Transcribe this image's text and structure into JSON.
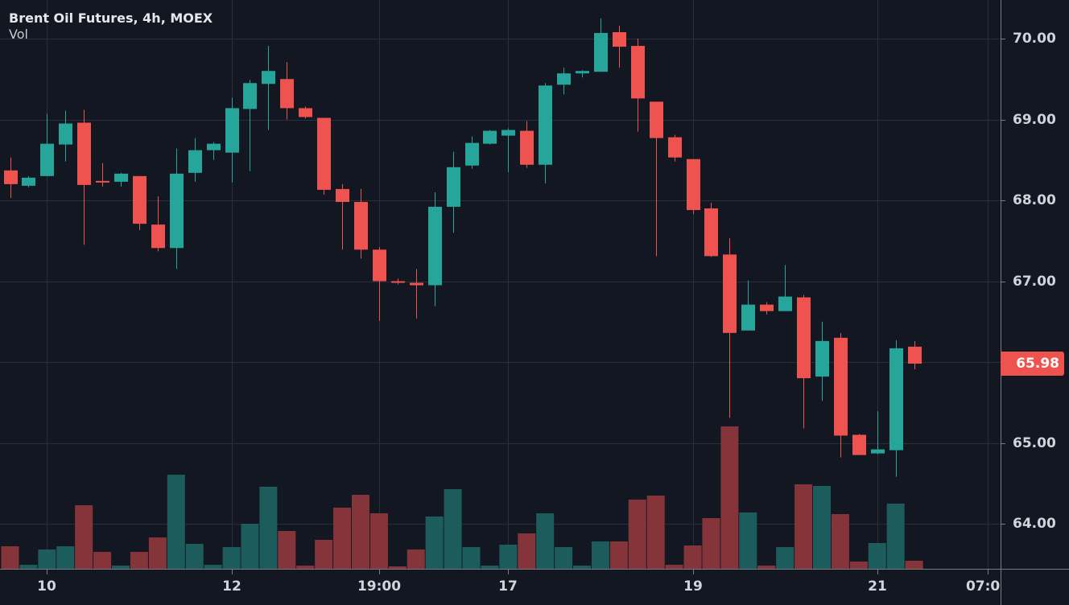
{
  "header": {
    "title": "Brent Oil Futures, 4h, MOEX",
    "indicator": "Vol"
  },
  "last_price": {
    "value": "65.98",
    "color": "#ef5350"
  },
  "colors": {
    "background": "#131722",
    "grid": "#2a2e39",
    "axis_line": "#787b86",
    "up": "#26a69a",
    "down": "#ef5350",
    "vol_up": "#1c5c5c",
    "vol_down": "#853539"
  },
  "price_axis": {
    "ticks": [
      "70.00",
      "69.00",
      "68.00",
      "67.00",
      "65.00",
      "64.00"
    ]
  },
  "time_axis": {
    "ticks": [
      "10",
      "12",
      "19:00",
      "17",
      "19",
      "21",
      "07:00"
    ]
  },
  "chart_data": {
    "type": "candlestick",
    "title": "Brent Oil Futures, 4h, MOEX",
    "xlabel": "",
    "ylabel": "Price",
    "ylim": [
      63.45,
      70.48
    ],
    "grid": true,
    "legend": "top-left",
    "y_ticks": [
      64,
      65,
      66,
      67,
      68,
      69,
      70
    ],
    "x_tick_labels": [
      {
        "label": "10",
        "index": 2
      },
      {
        "label": "12",
        "index": 12
      },
      {
        "label": "19:00",
        "index": 20
      },
      {
        "label": "17",
        "index": 27
      },
      {
        "label": "19",
        "index": 37
      },
      {
        "label": "21",
        "index": 47
      },
      {
        "label": "07:00",
        "index": 53
      }
    ],
    "last_price": 65.98,
    "candles": [
      {
        "o": 68.37,
        "h": 68.53,
        "l": 68.03,
        "c": 68.2,
        "v": 28
      },
      {
        "o": 68.18,
        "h": 68.3,
        "l": 68.16,
        "c": 68.28,
        "v": 5
      },
      {
        "o": 68.3,
        "h": 69.07,
        "l": 68.3,
        "c": 68.7,
        "v": 24
      },
      {
        "o": 68.69,
        "h": 69.11,
        "l": 68.48,
        "c": 68.95,
        "v": 28
      },
      {
        "o": 68.96,
        "h": 69.12,
        "l": 67.45,
        "c": 68.19,
        "v": 79
      },
      {
        "o": 68.24,
        "h": 68.46,
        "l": 68.17,
        "c": 68.22,
        "v": 21
      },
      {
        "o": 68.23,
        "h": 68.34,
        "l": 68.17,
        "c": 68.33,
        "v": 4
      },
      {
        "o": 68.3,
        "h": 68.3,
        "l": 67.63,
        "c": 67.71,
        "v": 21
      },
      {
        "o": 67.7,
        "h": 68.05,
        "l": 67.37,
        "c": 67.41,
        "v": 39
      },
      {
        "o": 67.41,
        "h": 68.64,
        "l": 67.15,
        "c": 68.33,
        "v": 117
      },
      {
        "o": 68.34,
        "h": 68.77,
        "l": 68.23,
        "c": 68.62,
        "v": 31
      },
      {
        "o": 68.62,
        "h": 68.72,
        "l": 68.5,
        "c": 68.7,
        "v": 5
      },
      {
        "o": 68.59,
        "h": 69.27,
        "l": 68.22,
        "c": 69.14,
        "v": 27
      },
      {
        "o": 69.13,
        "h": 69.49,
        "l": 68.36,
        "c": 69.45,
        "v": 56
      },
      {
        "o": 69.44,
        "h": 69.91,
        "l": 68.87,
        "c": 69.6,
        "v": 102
      },
      {
        "o": 69.5,
        "h": 69.71,
        "l": 69.0,
        "c": 69.14,
        "v": 47
      },
      {
        "o": 69.14,
        "h": 69.16,
        "l": 69.01,
        "c": 69.03,
        "v": 4
      },
      {
        "o": 69.02,
        "h": 69.02,
        "l": 68.07,
        "c": 68.13,
        "v": 36
      },
      {
        "o": 68.14,
        "h": 68.2,
        "l": 67.39,
        "c": 67.98,
        "v": 76
      },
      {
        "o": 67.98,
        "h": 68.14,
        "l": 67.28,
        "c": 67.39,
        "v": 92
      },
      {
        "o": 67.39,
        "h": 67.42,
        "l": 66.51,
        "c": 67.0,
        "v": 69
      },
      {
        "o": 67.0,
        "h": 67.03,
        "l": 66.96,
        "c": 66.98,
        "v": 3
      },
      {
        "o": 66.98,
        "h": 67.15,
        "l": 66.54,
        "c": 66.95,
        "v": 24
      },
      {
        "o": 66.95,
        "h": 68.1,
        "l": 66.69,
        "c": 67.92,
        "v": 65
      },
      {
        "o": 67.92,
        "h": 68.6,
        "l": 67.6,
        "c": 68.41,
        "v": 99
      },
      {
        "o": 68.43,
        "h": 68.79,
        "l": 68.39,
        "c": 68.71,
        "v": 27
      },
      {
        "o": 68.7,
        "h": 68.87,
        "l": 68.69,
        "c": 68.86,
        "v": 4
      },
      {
        "o": 68.8,
        "h": 68.89,
        "l": 68.35,
        "c": 68.87,
        "v": 30
      },
      {
        "o": 68.86,
        "h": 68.98,
        "l": 68.4,
        "c": 68.44,
        "v": 44
      },
      {
        "o": 68.44,
        "h": 69.45,
        "l": 68.21,
        "c": 69.42,
        "v": 69
      },
      {
        "o": 69.43,
        "h": 69.64,
        "l": 69.31,
        "c": 69.57,
        "v": 27
      },
      {
        "o": 69.57,
        "h": 69.61,
        "l": 69.52,
        "c": 69.6,
        "v": 4
      },
      {
        "o": 69.59,
        "h": 70.25,
        "l": 69.59,
        "c": 70.07,
        "v": 34
      },
      {
        "o": 70.08,
        "h": 70.16,
        "l": 69.64,
        "c": 69.9,
        "v": 34
      },
      {
        "o": 69.91,
        "h": 70.0,
        "l": 68.85,
        "c": 69.26,
        "v": 86
      },
      {
        "o": 69.22,
        "h": 69.22,
        "l": 67.31,
        "c": 68.77,
        "v": 91
      },
      {
        "o": 68.78,
        "h": 68.81,
        "l": 68.48,
        "c": 68.53,
        "v": 5
      },
      {
        "o": 68.51,
        "h": 68.51,
        "l": 67.83,
        "c": 67.88,
        "v": 29
      },
      {
        "o": 67.9,
        "h": 67.97,
        "l": 67.3,
        "c": 67.31,
        "v": 63
      },
      {
        "o": 67.33,
        "h": 67.53,
        "l": 65.31,
        "c": 66.36,
        "v": 177
      },
      {
        "o": 66.39,
        "h": 67.01,
        "l": 66.39,
        "c": 66.71,
        "v": 70
      },
      {
        "o": 66.71,
        "h": 66.74,
        "l": 66.59,
        "c": 66.63,
        "v": 4
      },
      {
        "o": 66.63,
        "h": 67.2,
        "l": 66.63,
        "c": 66.81,
        "v": 27
      },
      {
        "o": 66.8,
        "h": 66.83,
        "l": 65.18,
        "c": 65.8,
        "v": 105
      },
      {
        "o": 65.82,
        "h": 66.5,
        "l": 65.52,
        "c": 66.26,
        "v": 103
      },
      {
        "o": 66.3,
        "h": 66.36,
        "l": 64.82,
        "c": 65.09,
        "v": 68
      },
      {
        "o": 65.1,
        "h": 65.11,
        "l": 64.85,
        "c": 64.85,
        "v": 9
      },
      {
        "o": 64.87,
        "h": 65.39,
        "l": 64.86,
        "c": 64.92,
        "v": 32
      },
      {
        "o": 64.91,
        "h": 66.27,
        "l": 64.58,
        "c": 66.17,
        "v": 81
      },
      {
        "o": 66.19,
        "h": 66.26,
        "l": 65.91,
        "c": 65.98,
        "v": 10
      }
    ]
  }
}
